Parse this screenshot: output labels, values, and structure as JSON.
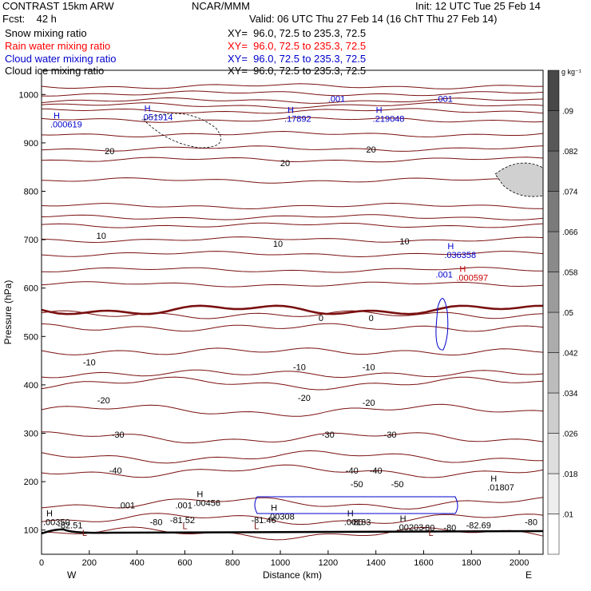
{
  "header": {
    "model": "CONTRAST 15km ARW",
    "center": "NCAR/MMM",
    "init": "Init: 12 UTC Tue 25 Feb 14",
    "fcst": "Fcst:    42 h",
    "valid": "Valid: 06 UTC Thu 27 Feb 14 (16 ChT Thu 27 Feb 14)"
  },
  "fields": [
    {
      "name": "Snow mixing ratio",
      "xy": "XY=  96.0, 72.5 to 235.3, 72.5",
      "color": "#000000"
    },
    {
      "name": "Rain water mixing ratio",
      "xy": "XY=  96.0, 72.5 to 235.3, 72.5",
      "color": "#ff0000"
    },
    {
      "name": "Cloud water mixing ratio",
      "xy": "XY=  96.0, 72.5 to 235.3, 72.5",
      "color": "#0000cc"
    },
    {
      "name": "Cloud ice mixing ratio",
      "xy": "XY=  96.0, 72.5 to 235.3, 72.5",
      "color": "#000000"
    }
  ],
  "chart_data": {
    "type": "contour",
    "xlabel": "Distance (km)",
    "ylabel": "Pressure (hPa)",
    "xlim": [
      0,
      2100
    ],
    "ylim": [
      1050,
      50
    ],
    "xticks": [
      "0",
      "200",
      "400",
      "600",
      "800",
      "1000",
      "1200",
      "1400",
      "1600",
      "1800",
      "2000"
    ],
    "yticks": [
      "100",
      "200",
      "300",
      "400",
      "500",
      "600",
      "700",
      "800",
      "900",
      "1000"
    ],
    "x_ends": {
      "left": "W",
      "right": "E"
    },
    "colorbar": {
      "unit": "g kg⁻¹",
      "ticks": [
        ".01",
        ".018",
        ".026",
        ".034",
        ".042",
        ".05",
        ".058",
        ".066",
        ".074",
        ".082",
        ".09"
      ]
    },
    "temperature_contours": {
      "color": "#7a1010",
      "levels": [
        {
          "label": "-80",
          "p": 140
        },
        {
          "label": "-50",
          "p": 185
        },
        {
          "label": "-40",
          "p": 237
        },
        {
          "label": "-30",
          "p": 292
        },
        {
          "label": "-20",
          "p": 348
        },
        {
          "label": "-10",
          "p": 402
        },
        {
          "label": "0",
          "p": 475
        },
        {
          "label": "10",
          "p": 510
        },
        {
          "label": "20",
          "p": 562
        }
      ],
      "labels": [
        {
          "text": "-82.51",
          "x": 120,
          "p": 104
        },
        {
          "text": "-80",
          "x": 480,
          "p": 110
        },
        {
          "text": "-81.52",
          "x": 590,
          "p": 114
        },
        {
          "text": "-81.46",
          "x": 930,
          "p": 114
        },
        {
          "text": "-80",
          "x": 1320,
          "p": 110
        },
        {
          "text": "-80",
          "x": 1710,
          "p": 99
        },
        {
          "text": "-80",
          "x": 1620,
          "p": 99
        },
        {
          "text": "-82.69",
          "x": 1830,
          "p": 104
        },
        {
          "text": "-80",
          "x": 2050,
          "p": 110
        },
        {
          "text": "-50",
          "x": 1320,
          "p": 189
        },
        {
          "text": "-50",
          "x": 1490,
          "p": 189
        },
        {
          "text": "-40",
          "x": 310,
          "p": 217
        },
        {
          "text": "-40",
          "x": 1300,
          "p": 217
        },
        {
          "text": "-40",
          "x": 1400,
          "p": 217
        },
        {
          "text": "-30",
          "x": 320,
          "p": 291
        },
        {
          "text": "-30",
          "x": 1200,
          "p": 291
        },
        {
          "text": "-30",
          "x": 1460,
          "p": 291
        },
        {
          "text": "-20",
          "x": 260,
          "p": 362
        },
        {
          "text": "-20",
          "x": 1100,
          "p": 367
        },
        {
          "text": "-20",
          "x": 1370,
          "p": 357
        },
        {
          "text": "-10",
          "x": 200,
          "p": 440
        },
        {
          "text": "-10",
          "x": 1080,
          "p": 430
        },
        {
          "text": "-10",
          "x": 1370,
          "p": 430
        },
        {
          "text": "0",
          "x": 1170,
          "p": 532
        },
        {
          "text": "0",
          "x": 1380,
          "p": 532
        },
        {
          "text": "10",
          "x": 250,
          "p": 702
        },
        {
          "text": "10",
          "x": 990,
          "p": 685
        },
        {
          "text": "10",
          "x": 1520,
          "p": 690
        },
        {
          "text": "20",
          "x": 285,
          "p": 877
        },
        {
          "text": "20",
          "x": 1020,
          "p": 852
        },
        {
          "text": "20",
          "x": 1380,
          "p": 880
        }
      ]
    },
    "extrema": [
      {
        "symbol": "L",
        "x": 170,
        "p": 88,
        "color": "#7a1010"
      },
      {
        "symbol": "L",
        "x": 590,
        "p": 102,
        "color": "#7a1010"
      },
      {
        "symbol": "L",
        "x": 890,
        "p": 102,
        "color": "#7a1010"
      },
      {
        "symbol": "L",
        "x": 1620,
        "p": 88,
        "color": "#7a1010"
      },
      {
        "symbol": "H",
        "x": 20,
        "p": 128,
        "value": ".00350",
        "color": "#000000"
      },
      {
        "symbol": "H",
        "x": 650,
        "p": 168,
        "value": ".00456",
        "color": "#000000"
      },
      {
        "symbol": "H",
        "x": 960,
        "p": 140,
        "value": ".00308",
        "color": "#000000"
      },
      {
        "symbol": "H",
        "x": 1280,
        "p": 128,
        "value": ".00133",
        "color": "#000000"
      },
      {
        "symbol": "H",
        "x": 1500,
        "p": 118,
        "value": ".00203",
        "color": "#000000"
      },
      {
        "symbol": "H",
        "x": 1880,
        "p": 200,
        "value": ".01807",
        "color": "#000000"
      },
      {
        "symbol": "H",
        "x": 1750,
        "p": 633,
        "value": ".000597",
        "color": "#cc0000"
      },
      {
        "symbol": "H",
        "x": 1700,
        "p": 680,
        "value": ".036358",
        "color": "#0000cc"
      },
      {
        "symbol": "H",
        "x": 50,
        "p": 950,
        "value": ".000619",
        "color": "#0000cc"
      },
      {
        "symbol": "H",
        "x": 430,
        "p": 965,
        "value": ".051914",
        "color": "#0000cc"
      },
      {
        "symbol": "H",
        "x": 1030,
        "p": 962,
        "value": ".17892",
        "color": "#0000cc"
      },
      {
        "symbol": "H",
        "x": 1400,
        "p": 962,
        "value": ".219048",
        "color": "#0000cc"
      }
    ],
    "contour_value_labels": [
      {
        "text": ".001",
        "x": 320,
        "p": 145,
        "color": "#000000"
      },
      {
        "text": ".001",
        "x": 560,
        "p": 145,
        "color": "#000000"
      },
      {
        "text": ".001",
        "x": 1650,
        "p": 622,
        "color": "#0000cc"
      },
      {
        "text": ".001",
        "x": 1200,
        "p": 985,
        "color": "#0000cc"
      },
      {
        "text": ".001",
        "x": 1650,
        "p": 985,
        "color": "#0000cc"
      }
    ]
  }
}
